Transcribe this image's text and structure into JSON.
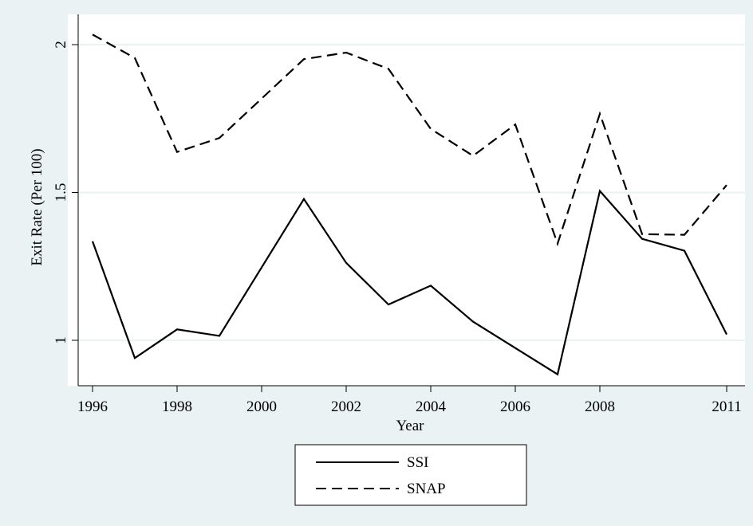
{
  "chart_data": {
    "type": "line",
    "title": "",
    "xlabel": "Year",
    "ylabel": "Exit Rate (Per 100)",
    "x_ticks": [
      1996,
      1998,
      2000,
      2002,
      2004,
      2006,
      2008,
      2011
    ],
    "y_ticks": [
      1,
      1.5,
      2
    ],
    "y_tick_labels": [
      "1",
      "1.5",
      "2"
    ],
    "xlim": [
      1996,
      2011
    ],
    "ylim": [
      0.86,
      2.04
    ],
    "grid": true,
    "legend_position": "bottom",
    "x": [
      1996,
      1997,
      1998,
      1999,
      2001,
      2002,
      2003,
      2004,
      2005,
      2006,
      2007,
      2008,
      2009,
      2010,
      2011
    ],
    "series": [
      {
        "name": "SSI",
        "style": "solid",
        "values": [
          1.335,
          0.94,
          1.037,
          1.015,
          1.478,
          1.262,
          1.121,
          1.185,
          1.063,
          null,
          0.885,
          1.505,
          1.343,
          1.303,
          1.02
        ]
      },
      {
        "name": "SNAP",
        "style": "dashed",
        "values": [
          2.034,
          1.955,
          1.637,
          1.684,
          1.951,
          1.973,
          1.918,
          1.715,
          1.624,
          1.73,
          1.327,
          1.766,
          1.359,
          1.357,
          1.525
        ]
      }
    ]
  },
  "colors": {
    "outer_background": "#eaf2f3",
    "plot_background": "#ffffff",
    "grid": "#eaf2f3",
    "line": "#000000"
  }
}
